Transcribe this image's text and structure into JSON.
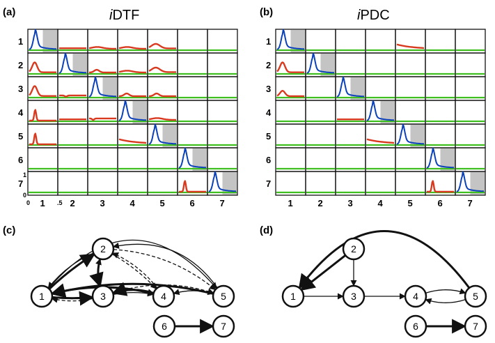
{
  "panels": {
    "a": {
      "label": "(a)",
      "title_prefix": "i",
      "title": "DTF",
      "row_labels": [
        "1",
        "2",
        "3",
        "4",
        "5",
        "6",
        "7"
      ],
      "col_labels": [
        "1",
        "2",
        "3",
        "4",
        "5",
        "6",
        "7"
      ],
      "y_ticks": [
        "1",
        "0"
      ],
      "x_ticks": [
        "0",
        ".5"
      ]
    },
    "b": {
      "label": "(b)",
      "title_prefix": "i",
      "title": "PDC",
      "row_labels": [
        "1",
        "2",
        "3",
        "4",
        "5",
        "6",
        "7"
      ],
      "col_labels": [
        "1",
        "2",
        "3",
        "4",
        "5",
        "6",
        "7"
      ]
    },
    "c": {
      "label": "(c)",
      "nodes": [
        "1",
        "2",
        "3",
        "4",
        "5",
        "6",
        "7"
      ]
    },
    "d": {
      "label": "(d)",
      "nodes": [
        "1",
        "2",
        "3",
        "4",
        "5",
        "6",
        "7"
      ]
    }
  },
  "colors": {
    "diagonal": "#0b41b8",
    "off_diagonal": "#d83a20",
    "baseline": "#3fbf1f",
    "diag_bg": "#c4c4c4"
  },
  "matrices": {
    "dtf": [
      [
        "diag",
        "flat",
        "low",
        "low",
        "mid",
        "zero",
        "zero"
      ],
      [
        "peak",
        "diag",
        "small",
        "low",
        "mid",
        "zero",
        "zero"
      ],
      [
        "peak",
        "dip",
        "diag",
        "small",
        "small",
        "zero",
        "zero"
      ],
      [
        "spike",
        "flat",
        "flatdip",
        "diag",
        "low",
        "zero",
        "zero"
      ],
      [
        "spike",
        "zero",
        "zero",
        "decay",
        "diag",
        "zero",
        "zero"
      ],
      [
        "zero",
        "zero",
        "zero",
        "zero",
        "zero",
        "diag",
        "zero"
      ],
      [
        "zero",
        "zero",
        "zero",
        "zero",
        "zero",
        "spike",
        "diag"
      ]
    ],
    "pdc": [
      [
        "diag",
        "zero",
        "zero",
        "zero",
        "decay",
        "zero",
        "zero"
      ],
      [
        "peak",
        "diag",
        "zero",
        "zero",
        "zero",
        "zero",
        "zero"
      ],
      [
        "lowpeak",
        "zero",
        "diag",
        "zero",
        "zero",
        "zero",
        "zero"
      ],
      [
        "zero",
        "zero",
        "flat",
        "diag",
        "zero",
        "zero",
        "zero"
      ],
      [
        "zero",
        "zero",
        "zero",
        "decay",
        "diag",
        "zero",
        "zero"
      ],
      [
        "zero",
        "zero",
        "zero",
        "zero",
        "zero",
        "diag",
        "zero"
      ],
      [
        "zero",
        "zero",
        "zero",
        "zero",
        "zero",
        "spike",
        "diag"
      ]
    ]
  },
  "graph_c_edges": [
    {
      "from": "1",
      "to": "2",
      "style": "thick"
    },
    {
      "from": "2",
      "to": "1",
      "style": "solid"
    },
    {
      "from": "1",
      "to": "3",
      "style": "thick"
    },
    {
      "from": "3",
      "to": "1",
      "style": "dashed"
    },
    {
      "from": "1",
      "to": "4",
      "style": "solid"
    },
    {
      "from": "4",
      "to": "1",
      "style": "thick"
    },
    {
      "from": "1",
      "to": "5",
      "style": "solid"
    },
    {
      "from": "5",
      "to": "1",
      "style": "thick"
    },
    {
      "from": "2",
      "to": "3",
      "style": "thick"
    },
    {
      "from": "3",
      "to": "2",
      "style": "dashed"
    },
    {
      "from": "2",
      "to": "4",
      "style": "dashed"
    },
    {
      "from": "4",
      "to": "2",
      "style": "dashed"
    },
    {
      "from": "2",
      "to": "5",
      "style": "dashed"
    },
    {
      "from": "5",
      "to": "2",
      "style": "solid"
    },
    {
      "from": "3",
      "to": "4",
      "style": "solid"
    },
    {
      "from": "4",
      "to": "3",
      "style": "thick"
    },
    {
      "from": "3",
      "to": "5",
      "style": "dashed"
    },
    {
      "from": "4",
      "to": "5",
      "style": "solid"
    },
    {
      "from": "5",
      "to": "4",
      "style": "solid"
    },
    {
      "from": "6",
      "to": "7",
      "style": "thick"
    }
  ],
  "graph_d_edges": [
    {
      "from": "2",
      "to": "1",
      "style": "thick"
    },
    {
      "from": "2",
      "to": "3",
      "style": "solid"
    },
    {
      "from": "1",
      "to": "3",
      "style": "solid"
    },
    {
      "from": "3",
      "to": "4",
      "style": "solid"
    },
    {
      "from": "4",
      "to": "5",
      "style": "solid"
    },
    {
      "from": "5",
      "to": "4",
      "style": "solid"
    },
    {
      "from": "5",
      "to": "1",
      "style": "thick"
    },
    {
      "from": "6",
      "to": "7",
      "style": "thick"
    }
  ]
}
